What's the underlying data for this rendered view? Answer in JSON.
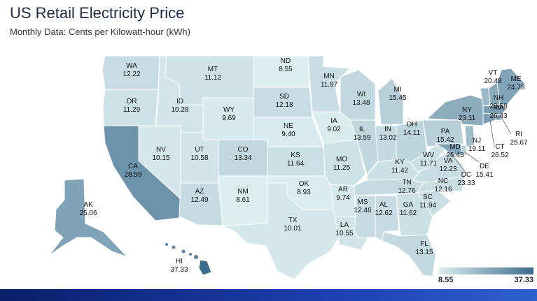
{
  "title": "US Retail Electricity Price",
  "subtitle": "Monthly Data: Cents per Kilowatt-hour (kWh)",
  "legend": {
    "min": "8.55",
    "max": "37.33",
    "color_low": "#dceef0",
    "color_high": "#3d6b8c"
  },
  "states": [
    {
      "abbr": "WA",
      "value": "12.22"
    },
    {
      "abbr": "OR",
      "value": "11.29"
    },
    {
      "abbr": "CA",
      "value": "28.59"
    },
    {
      "abbr": "ID",
      "value": "10.28"
    },
    {
      "abbr": "NV",
      "value": "10.15"
    },
    {
      "abbr": "MT",
      "value": "11.12"
    },
    {
      "abbr": "WY",
      "value": "9.69"
    },
    {
      "abbr": "UT",
      "value": "10.58"
    },
    {
      "abbr": "AZ",
      "value": "12.49"
    },
    {
      "abbr": "CO",
      "value": "13.34"
    },
    {
      "abbr": "NM",
      "value": "8.61"
    },
    {
      "abbr": "ND",
      "value": "8.55"
    },
    {
      "abbr": "SD",
      "value": "12.18"
    },
    {
      "abbr": "NE",
      "value": "9.40"
    },
    {
      "abbr": "KS",
      "value": "11.64"
    },
    {
      "abbr": "OK",
      "value": "8.93"
    },
    {
      "abbr": "TX",
      "value": "10.01"
    },
    {
      "abbr": "MN",
      "value": "11.97"
    },
    {
      "abbr": "IA",
      "value": "9.02"
    },
    {
      "abbr": "MO",
      "value": "11.25"
    },
    {
      "abbr": "AR",
      "value": "9.74"
    },
    {
      "abbr": "LA",
      "value": "10.55"
    },
    {
      "abbr": "WI",
      "value": "13.48"
    },
    {
      "abbr": "IL",
      "value": "13.59"
    },
    {
      "abbr": "MI",
      "value": "15.45"
    },
    {
      "abbr": "IN",
      "value": "13.02"
    },
    {
      "abbr": "OH",
      "value": "14.11"
    },
    {
      "abbr": "KY",
      "value": "11.42"
    },
    {
      "abbr": "TN",
      "value": "12.76"
    },
    {
      "abbr": "MS",
      "value": "12.46"
    },
    {
      "abbr": "AL",
      "value": "12.62"
    },
    {
      "abbr": "GA",
      "value": "11.62"
    },
    {
      "abbr": "FL",
      "value": "13.15"
    },
    {
      "abbr": "SC",
      "value": "11.94"
    },
    {
      "abbr": "NC",
      "value": "12.16"
    },
    {
      "abbr": "VA",
      "value": "12.23"
    },
    {
      "abbr": "WV",
      "value": "11.71"
    },
    {
      "abbr": "PA",
      "value": "15.42"
    },
    {
      "abbr": "NY",
      "value": "23.11"
    },
    {
      "abbr": "VT",
      "value": "20.48"
    },
    {
      "abbr": "NH",
      "value": "23.58"
    },
    {
      "abbr": "ME",
      "value": "24.78"
    },
    {
      "abbr": "MA",
      "value": "26.43"
    },
    {
      "abbr": "RI",
      "value": "25.67"
    },
    {
      "abbr": "CT",
      "value": "26.52"
    },
    {
      "abbr": "NJ",
      "value": "19.11"
    },
    {
      "abbr": "DE",
      "value": "15.41"
    },
    {
      "abbr": "MD",
      "value": "25.43"
    },
    {
      "abbr": "DC",
      "value": "23.33"
    },
    {
      "abbr": "AK",
      "value": "25.06"
    },
    {
      "abbr": "HI",
      "value": "37.33"
    }
  ]
}
